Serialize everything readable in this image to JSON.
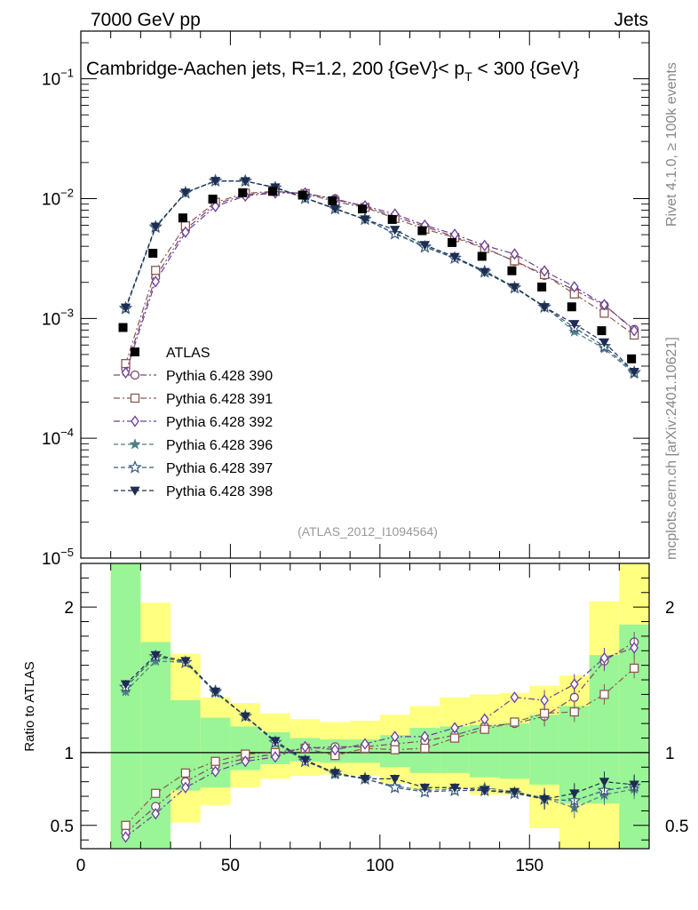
{
  "header": {
    "left": "7000 GeV pp",
    "right": "Jets",
    "side_top": "Rivet 4.1.0, ≥ 100k events",
    "side_bottom": "mcplots.cern.ch [arXiv:2401.10621]"
  },
  "chart_data": {
    "type": "scatter",
    "title": "Cambridge-Aachen jets, R=1.2,  200 {GeV}< p_T < 300 {GeV}",
    "title_parts": {
      "main": "Cambridge-Aachen jets, R=1.2,  200 {GeV}< p",
      "sub": "T",
      "tail": " < 300 {GeV}"
    },
    "analysis_label": "(ATLAS_2012_I1094564)",
    "main_yscale": "log",
    "main_ylim": [
      1e-05,
      0.25
    ],
    "main_yticks": [
      {
        "exp": -1,
        "label_base": "10",
        "label_exp": "−1"
      },
      {
        "exp": -2,
        "label_base": "10",
        "label_exp": "−2"
      },
      {
        "exp": -3,
        "label_base": "10",
        "label_exp": "−3"
      },
      {
        "exp": -4,
        "label_base": "10",
        "label_exp": "−4"
      },
      {
        "exp": -5,
        "label_base": "10",
        "label_exp": "−5"
      }
    ],
    "xlim": [
      0,
      190
    ],
    "xticks": [
      {
        "v": 0,
        "label": "0"
      },
      {
        "v": 50,
        "label": "50"
      },
      {
        "v": 100,
        "label": "100"
      },
      {
        "v": 150,
        "label": "150"
      }
    ],
    "ratio_ylabel": "Ratio to ATLAS",
    "ratio_ylim": [
      0.34,
      2.3
    ],
    "ratio_yticks": [
      {
        "v": 0.5,
        "label": "0.5"
      },
      {
        "v": 1,
        "label": "1"
      },
      {
        "v": 2,
        "label": "2"
      }
    ],
    "x": [
      15,
      25,
      35,
      45,
      55,
      65,
      75,
      85,
      95,
      105,
      115,
      125,
      135,
      145,
      155,
      165,
      175,
      185
    ],
    "data": {
      "name": "ATLAS",
      "values": [
        0.00084,
        0.0035,
        0.0069,
        0.0099,
        0.0112,
        0.0115,
        0.0107,
        0.0096,
        0.0082,
        0.0067,
        0.0054,
        0.0043,
        0.0033,
        0.0025,
        0.00183,
        0.00125,
        0.00079,
        0.00046
      ]
    },
    "bands": [
      {
        "lo": 10,
        "hi": 20,
        "yellow": [
          0.34,
          2.3
        ],
        "green": [
          0.34,
          2.3
        ]
      },
      {
        "lo": 20,
        "hi": 30,
        "yellow": [
          0.48,
          2.03
        ],
        "green": [
          0.34,
          1.76
        ]
      },
      {
        "lo": 30,
        "hi": 40,
        "yellow": [
          0.52,
          1.68
        ],
        "green": [
          0.74,
          1.36
        ]
      },
      {
        "lo": 40,
        "hi": 50,
        "yellow": [
          0.64,
          1.38
        ],
        "green": [
          0.76,
          1.24
        ]
      },
      {
        "lo": 50,
        "hi": 60,
        "yellow": [
          0.76,
          1.34
        ],
        "green": [
          0.88,
          1.18
        ]
      },
      {
        "lo": 60,
        "hi": 70,
        "yellow": [
          0.82,
          1.27
        ],
        "green": [
          0.92,
          1.14
        ]
      },
      {
        "lo": 70,
        "hi": 80,
        "yellow": [
          0.84,
          1.23
        ],
        "green": [
          0.94,
          1.1
        ]
      },
      {
        "lo": 80,
        "hi": 90,
        "yellow": [
          0.85,
          1.21
        ],
        "green": [
          0.93,
          1.09
        ]
      },
      {
        "lo": 90,
        "hi": 100,
        "yellow": [
          0.84,
          1.22
        ],
        "green": [
          0.93,
          1.09
        ]
      },
      {
        "lo": 100,
        "hi": 110,
        "yellow": [
          0.79,
          1.26
        ],
        "green": [
          0.9,
          1.12
        ]
      },
      {
        "lo": 110,
        "hi": 120,
        "yellow": [
          0.75,
          1.32
        ],
        "green": [
          0.86,
          1.17
        ]
      },
      {
        "lo": 120,
        "hi": 130,
        "yellow": [
          0.75,
          1.38
        ],
        "green": [
          0.86,
          1.18
        ]
      },
      {
        "lo": 130,
        "hi": 140,
        "yellow": [
          0.71,
          1.4
        ],
        "green": [
          0.83,
          1.19
        ]
      },
      {
        "lo": 140,
        "hi": 150,
        "yellow": [
          0.71,
          1.41
        ],
        "green": [
          0.82,
          1.2
        ]
      },
      {
        "lo": 150,
        "hi": 160,
        "yellow": [
          0.48,
          1.46
        ],
        "green": [
          0.78,
          1.26
        ]
      },
      {
        "lo": 160,
        "hi": 170,
        "yellow": [
          0.34,
          1.53
        ],
        "green": [
          0.65,
          1.32
        ]
      },
      {
        "lo": 170,
        "hi": 180,
        "yellow": [
          0.34,
          2.04
        ],
        "green": [
          0.65,
          1.67
        ]
      },
      {
        "lo": 180,
        "hi": 190,
        "yellow": [
          0.34,
          2.3
        ],
        "green": [
          0.34,
          1.88
        ]
      }
    ],
    "series": [
      {
        "name": "Pythia 6.428 390",
        "color": "#7a4a6e",
        "marker": "circle",
        "dash": "7,3,2,3",
        "ratio": [
          0.45,
          0.63,
          0.8,
          0.91,
          0.96,
          0.99,
          1.03,
          1.04,
          1.04,
          1.06,
          1.08,
          1.12,
          1.18,
          1.2,
          1.25,
          1.38,
          1.63,
          1.76
        ]
      },
      {
        "name": "Pythia 6.428 391",
        "color": "#8c5a50",
        "marker": "square",
        "dash": "7,3,2,3",
        "ratio": [
          0.5,
          0.72,
          0.86,
          0.94,
          0.99,
          1.0,
          1.03,
          0.98,
          1.03,
          1.02,
          1.03,
          1.1,
          1.16,
          1.21,
          1.27,
          1.28,
          1.4,
          1.58
        ]
      },
      {
        "name": "Pythia 6.428 392",
        "color": "#6a3d9a",
        "marker": "diamond",
        "dash": "7,3,2,3",
        "ratio": [
          0.42,
          0.58,
          0.76,
          0.87,
          0.94,
          0.97,
          1.04,
          1.02,
          1.06,
          1.11,
          1.11,
          1.17,
          1.23,
          1.38,
          1.36,
          1.47,
          1.65,
          1.72
        ]
      },
      {
        "name": "Pythia 6.428 396",
        "color": "#4f7f86",
        "marker": "star",
        "dash": "5,3",
        "ratio": [
          1.42,
          1.63,
          1.62,
          1.41,
          1.25,
          1.07,
          0.95,
          0.85,
          0.82,
          0.77,
          0.74,
          0.75,
          0.76,
          0.73,
          0.69,
          0.62,
          0.71,
          0.75
        ]
      },
      {
        "name": "Pythia 6.428 397",
        "color": "#3a5a7c",
        "marker": "star-open",
        "dash": "5,3",
        "ratio": [
          1.45,
          1.66,
          1.62,
          1.42,
          1.25,
          1.07,
          0.94,
          0.86,
          0.82,
          0.76,
          0.73,
          0.74,
          0.74,
          0.72,
          0.68,
          0.67,
          0.74,
          0.77
        ]
      },
      {
        "name": "Pythia 6.428 398",
        "color": "#1e2d50",
        "marker": "triangle-down",
        "dash": "5,3",
        "ratio": [
          1.47,
          1.67,
          1.63,
          1.42,
          1.25,
          1.08,
          0.95,
          0.86,
          0.82,
          0.82,
          0.76,
          0.76,
          0.74,
          0.73,
          0.68,
          0.72,
          0.8,
          0.78
        ]
      }
    ]
  }
}
